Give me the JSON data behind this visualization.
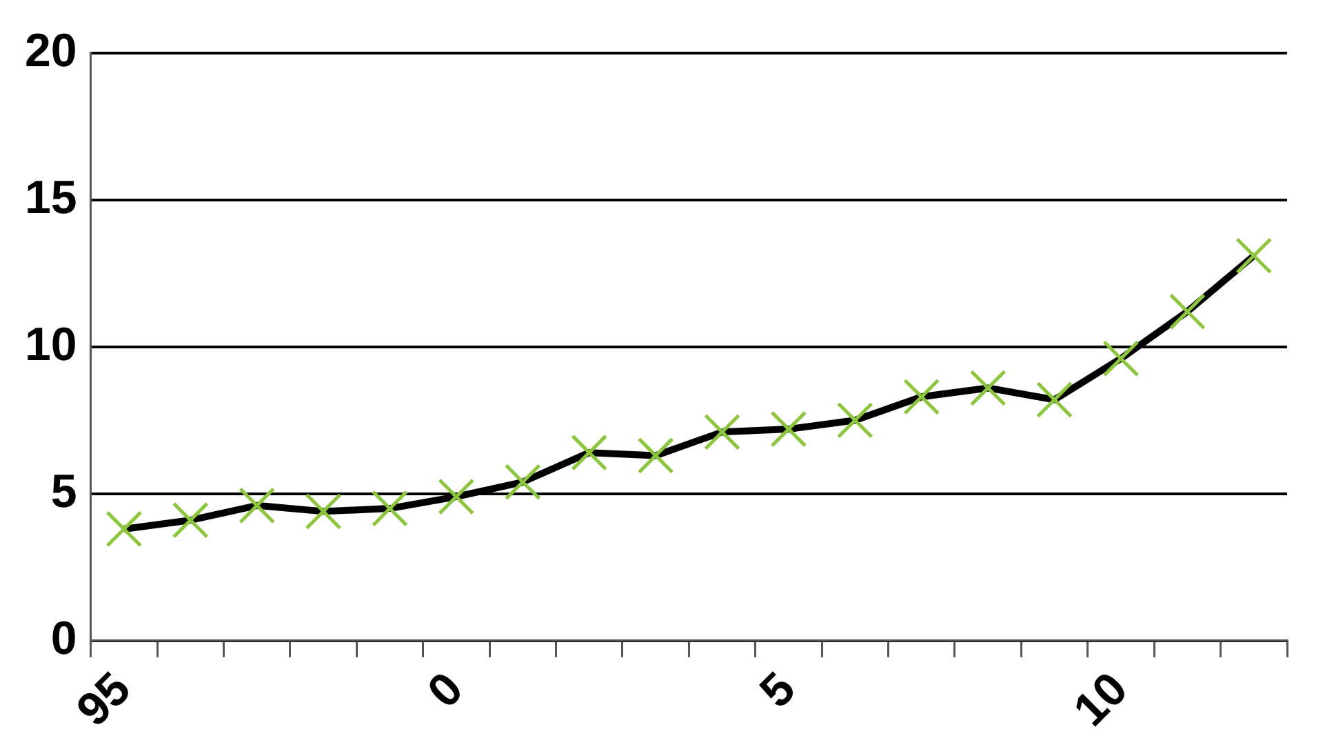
{
  "chart_data": {
    "type": "line",
    "categories": [
      "95",
      null,
      null,
      null,
      null,
      "0",
      null,
      null,
      null,
      null,
      "5",
      null,
      null,
      null,
      null,
      "10",
      null,
      null
    ],
    "series": [
      {
        "color": "#000000",
        "values": [
          3.8,
          4.1,
          4.6,
          4.4,
          4.5,
          4.9,
          5.4,
          6.4,
          6.3,
          7.1,
          7.2,
          7.5,
          8.3,
          8.6,
          8.2,
          9.6,
          11.2,
          13.1
        ]
      }
    ],
    "ylim": [
      0,
      20
    ],
    "yticks": [
      0,
      5,
      10,
      15,
      20
    ],
    "grid": "y",
    "legend": false,
    "marker": "cross",
    "line_style": "solid"
  }
}
